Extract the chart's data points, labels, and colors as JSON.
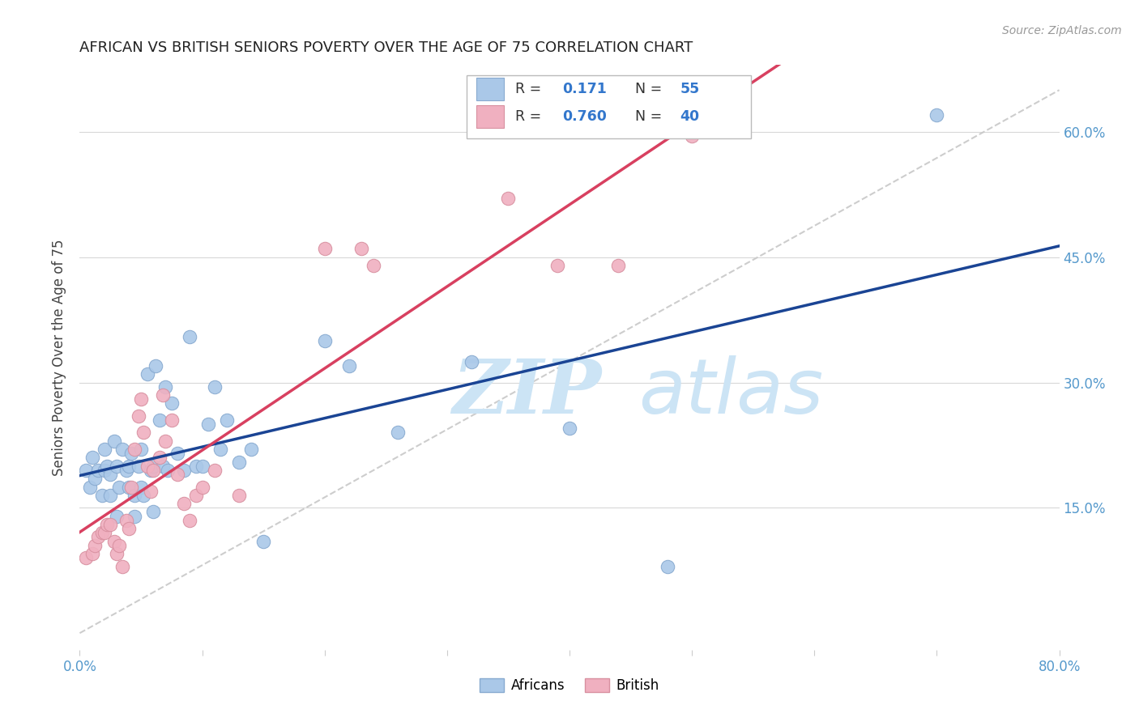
{
  "title": "AFRICAN VS BRITISH SENIORS POVERTY OVER THE AGE OF 75 CORRELATION CHART",
  "source": "Source: ZipAtlas.com",
  "ylabel": "Seniors Poverty Over the Age of 75",
  "xlim": [
    0.0,
    0.8
  ],
  "ylim": [
    -0.02,
    0.68
  ],
  "xticks": [
    0.0,
    0.1,
    0.2,
    0.3,
    0.4,
    0.5,
    0.6,
    0.7,
    0.8
  ],
  "xticklabels": [
    "0.0%",
    "",
    "",
    "",
    "",
    "",
    "",
    "",
    "80.0%"
  ],
  "yticks_right": [
    0.15,
    0.3,
    0.45,
    0.6
  ],
  "yticklabels_right": [
    "15.0%",
    "30.0%",
    "45.0%",
    "60.0%"
  ],
  "background_color": "#ffffff",
  "grid_color": "#d8d8d8",
  "watermark_zip": "ZIP",
  "watermark_atlas": "atlas",
  "watermark_color": "#cce4f5",
  "legend_R1": "R =  0.171",
  "legend_N1": "N = 55",
  "legend_R2": "R = 0.760",
  "legend_N2": "N = 40",
  "african_color": "#aac8e8",
  "african_edge_color": "#88aad0",
  "british_color": "#f0b0c0",
  "british_edge_color": "#d890a0",
  "trend_african_color": "#1a4494",
  "trend_british_color": "#d84060",
  "diagonal_color": "#c8c8c8",
  "africans_x": [
    0.005,
    0.008,
    0.01,
    0.012,
    0.015,
    0.018,
    0.02,
    0.02,
    0.022,
    0.025,
    0.025,
    0.028,
    0.03,
    0.03,
    0.032,
    0.035,
    0.038,
    0.04,
    0.04,
    0.042,
    0.045,
    0.045,
    0.048,
    0.05,
    0.05,
    0.052,
    0.055,
    0.058,
    0.06,
    0.06,
    0.062,
    0.065,
    0.068,
    0.07,
    0.072,
    0.075,
    0.08,
    0.085,
    0.09,
    0.095,
    0.1,
    0.105,
    0.11,
    0.115,
    0.12,
    0.13,
    0.14,
    0.15,
    0.2,
    0.22,
    0.26,
    0.32,
    0.4,
    0.48,
    0.7
  ],
  "africans_y": [
    0.195,
    0.175,
    0.21,
    0.185,
    0.195,
    0.165,
    0.195,
    0.22,
    0.2,
    0.19,
    0.165,
    0.23,
    0.14,
    0.2,
    0.175,
    0.22,
    0.195,
    0.2,
    0.175,
    0.215,
    0.14,
    0.165,
    0.2,
    0.175,
    0.22,
    0.165,
    0.31,
    0.195,
    0.145,
    0.2,
    0.32,
    0.255,
    0.2,
    0.295,
    0.195,
    0.275,
    0.215,
    0.195,
    0.355,
    0.2,
    0.2,
    0.25,
    0.295,
    0.22,
    0.255,
    0.205,
    0.22,
    0.11,
    0.35,
    0.32,
    0.24,
    0.325,
    0.245,
    0.08,
    0.62
  ],
  "british_x": [
    0.005,
    0.01,
    0.012,
    0.015,
    0.018,
    0.02,
    0.022,
    0.025,
    0.028,
    0.03,
    0.032,
    0.035,
    0.038,
    0.04,
    0.042,
    0.045,
    0.048,
    0.05,
    0.052,
    0.055,
    0.058,
    0.06,
    0.065,
    0.068,
    0.07,
    0.075,
    0.08,
    0.085,
    0.09,
    0.095,
    0.1,
    0.11,
    0.13,
    0.2,
    0.23,
    0.24,
    0.35,
    0.39,
    0.44,
    0.5
  ],
  "british_y": [
    0.09,
    0.095,
    0.105,
    0.115,
    0.12,
    0.12,
    0.13,
    0.13,
    0.11,
    0.095,
    0.105,
    0.08,
    0.135,
    0.125,
    0.175,
    0.22,
    0.26,
    0.28,
    0.24,
    0.2,
    0.17,
    0.195,
    0.21,
    0.285,
    0.23,
    0.255,
    0.19,
    0.155,
    0.135,
    0.165,
    0.175,
    0.195,
    0.165,
    0.46,
    0.46,
    0.44,
    0.52,
    0.44,
    0.44,
    0.595
  ]
}
